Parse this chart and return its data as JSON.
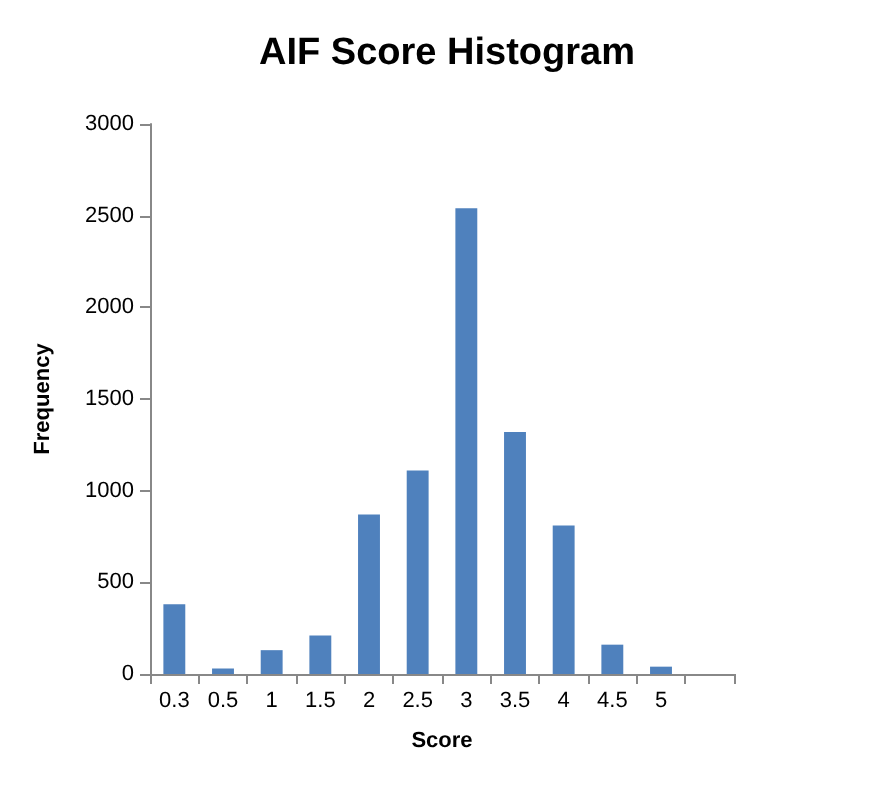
{
  "chart_data": {
    "type": "bar",
    "title": "AIF Score Histogram",
    "xlabel": "Score",
    "ylabel": "Frequency",
    "categories": [
      "0.3",
      "0.5",
      "1",
      "1.5",
      "2",
      "2.5",
      "3",
      "3.5",
      "4",
      "4.5",
      "5",
      null
    ],
    "values": [
      380,
      30,
      130,
      210,
      870,
      1110,
      2540,
      1320,
      810,
      160,
      40,
      null
    ],
    "color": "#4f81bd",
    "ylim": [
      0,
      3000
    ],
    "yticks": [
      0,
      500,
      1000,
      1500,
      2000,
      2500,
      3000
    ],
    "grid": false
  }
}
